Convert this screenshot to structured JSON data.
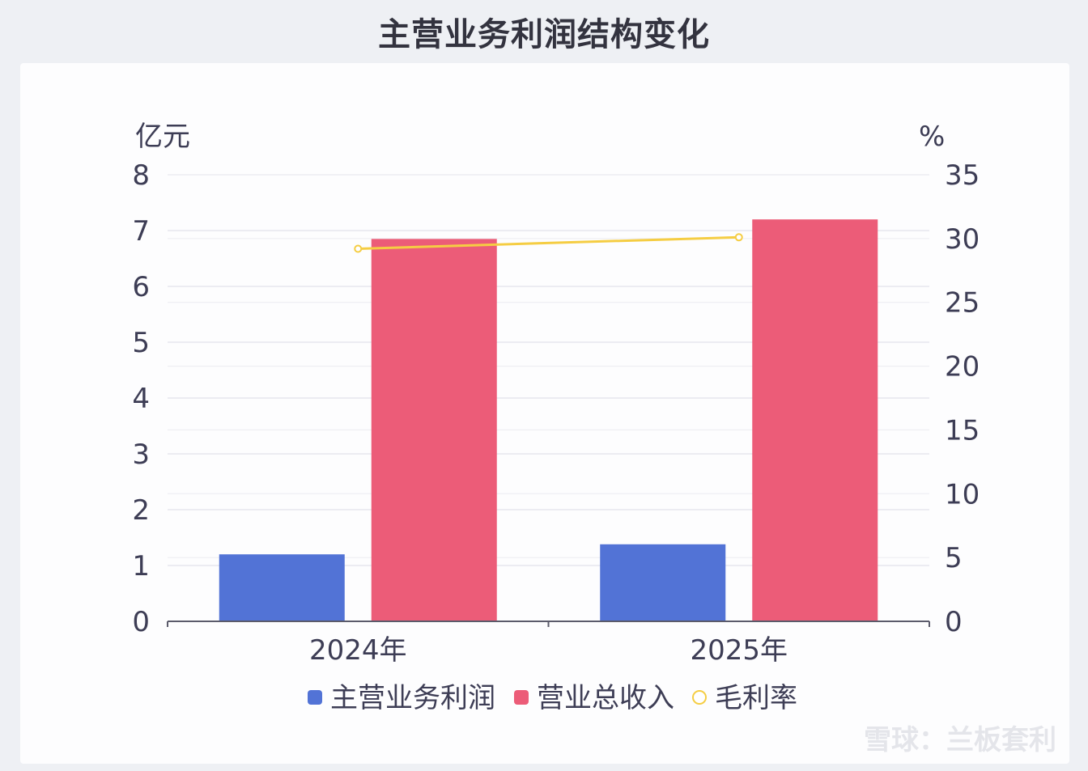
{
  "title": "主营业务利润结构变化",
  "watermark": "雪球：兰板套利",
  "chart_data": {
    "type": "bar",
    "categories": [
      "2024年",
      "2025年"
    ],
    "series": [
      {
        "name": "主营业务利润",
        "type": "bar",
        "axis": "left",
        "color": "#5273d6",
        "values": [
          1.2,
          1.38
        ]
      },
      {
        "name": "营业总收入",
        "type": "bar",
        "axis": "left",
        "color": "#ec5c78",
        "values": [
          6.85,
          7.2
        ]
      },
      {
        "name": "毛利率",
        "type": "line",
        "axis": "right",
        "color": "#f5cd43",
        "values": [
          29.2,
          30.1
        ]
      }
    ],
    "y_left": {
      "unit": "亿元",
      "range": [
        0,
        8
      ],
      "ticks": [
        0,
        1,
        2,
        3,
        4,
        5,
        6,
        7,
        8
      ]
    },
    "y_right": {
      "unit": "%",
      "range": [
        0,
        35
      ],
      "ticks": [
        0,
        5,
        10,
        15,
        20,
        25,
        30,
        35
      ]
    },
    "grid": true,
    "legend_position": "bottom"
  }
}
